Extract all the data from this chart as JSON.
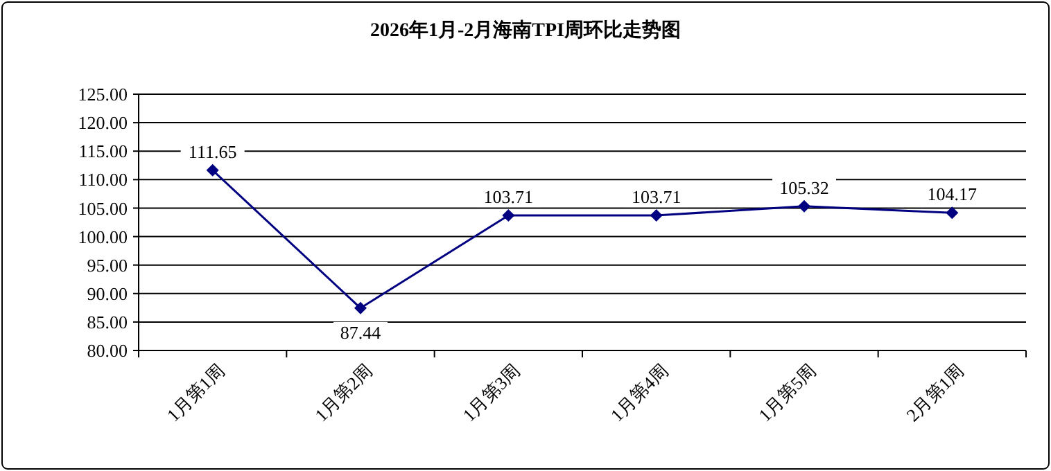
{
  "chart_data": {
    "type": "line",
    "title": "2026年1月-2月海南TPI周环比走势图",
    "categories": [
      "1月第1周",
      "1月第2周",
      "1月第3周",
      "1月第4周",
      "1月第5周",
      "2月第1周"
    ],
    "series": [
      {
        "color": "#000080",
        "values": [
          111.65,
          87.44,
          103.71,
          103.71,
          105.32,
          104.17
        ]
      }
    ],
    "ylim": [
      80,
      125
    ],
    "yticks": [
      {
        "value": 80,
        "label": "80.00"
      },
      {
        "value": 85,
        "label": "85.00"
      },
      {
        "value": 90,
        "label": "90.00"
      },
      {
        "value": 95,
        "label": "95.00"
      },
      {
        "value": 100,
        "label": "100.00"
      },
      {
        "value": 105,
        "label": "105.00"
      },
      {
        "value": 110,
        "label": "110.00"
      },
      {
        "value": 115,
        "label": "115.00"
      },
      {
        "value": 120,
        "label": "120.00"
      },
      {
        "value": 125,
        "label": "125.00"
      }
    ],
    "grid": "y",
    "marker": "diamond",
    "line_style": "solid",
    "data_labels": true
  }
}
